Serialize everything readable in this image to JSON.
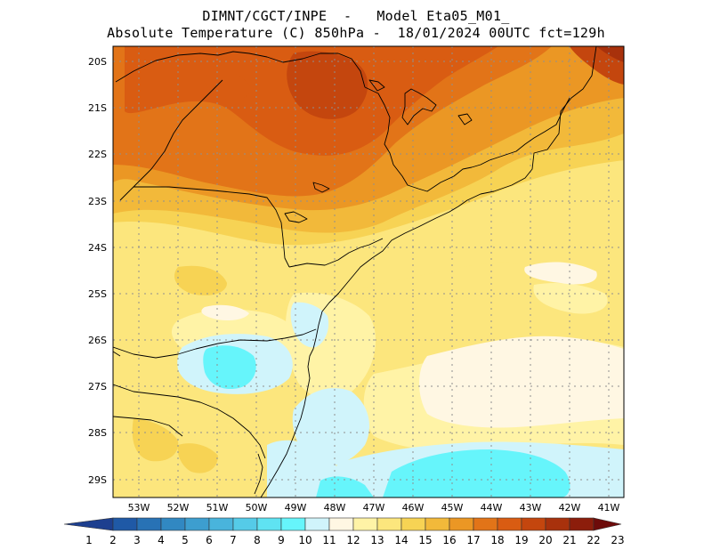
{
  "title": {
    "line1": "DIMNT/CGCT/INPE  -   Model Eta05_M01_",
    "line2": "Absolute Temperature (C) 850hPa -  18/01/2024 00UTC fct=129h"
  },
  "axes": {
    "lat_labels": [
      "20S",
      "21S",
      "22S",
      "23S",
      "24S",
      "25S",
      "26S",
      "27S",
      "28S",
      "29S"
    ],
    "lon_labels": [
      "53W",
      "52W",
      "51W",
      "50W",
      "49W",
      "48W",
      "47W",
      "46W",
      "45W",
      "44W",
      "43W",
      "42W",
      "41W"
    ]
  },
  "colorbar": {
    "labels": [
      "1",
      "2",
      "3",
      "4",
      "5",
      "6",
      "7",
      "8",
      "9",
      "10",
      "11",
      "12",
      "13",
      "14",
      "15",
      "16",
      "17",
      "18",
      "19",
      "20",
      "21",
      "22",
      "23"
    ],
    "colors": [
      "#1d3f8f",
      "#1f59a6",
      "#2872b5",
      "#3188c2",
      "#3d9ecf",
      "#49b4dc",
      "#55cbe8",
      "#5fe3f2",
      "#66f5fb",
      "#d0f4fb",
      "#fff7e3",
      "#fff3a6",
      "#fce67d",
      "#f7d354",
      "#f2b93a",
      "#eb9724",
      "#e27418",
      "#d95c12",
      "#c4460e",
      "#a8310c",
      "#8c1d0b",
      "#6d0b0a"
    ]
  },
  "legend_semantics": {
    "coldest": "#1d3f8f",
    "warmest": "#6d0b0a"
  }
}
